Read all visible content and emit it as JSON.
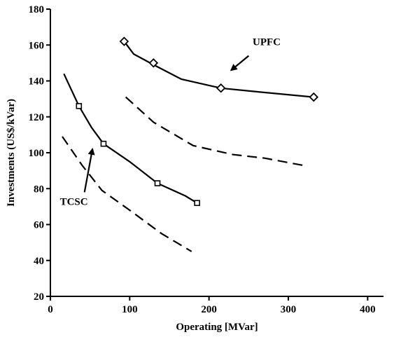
{
  "chart_data": {
    "type": "line",
    "title": "",
    "xlabel": "Operating [MVar]",
    "ylabel": "Investments (US$/kVar)",
    "xlim": [
      0,
      420
    ],
    "ylim": [
      20,
      180
    ],
    "xticks": [
      0,
      100,
      200,
      300,
      400
    ],
    "yticks": [
      20,
      40,
      60,
      80,
      100,
      120,
      140,
      160,
      180
    ],
    "grid": false,
    "series": [
      {
        "style": "solid-with-markers",
        "marker": "diamond",
        "color": "#000000",
        "curve": [
          [
            93,
            162
          ],
          [
            105,
            155
          ],
          [
            130,
            149
          ],
          [
            165,
            141
          ],
          [
            215,
            136
          ],
          [
            260,
            134
          ],
          [
            332,
            131
          ]
        ],
        "points": [
          [
            93,
            162
          ],
          [
            130,
            150
          ],
          [
            215,
            136
          ],
          [
            332,
            131
          ]
        ]
      },
      {
        "style": "dashed",
        "color": "#000000",
        "curve": [
          [
            95,
            131
          ],
          [
            130,
            117
          ],
          [
            180,
            104
          ],
          [
            230,
            99
          ],
          [
            270,
            97
          ],
          [
            318,
            93
          ]
        ],
        "points": []
      },
      {
        "style": "solid-with-markers",
        "marker": "square",
        "color": "#000000",
        "curve": [
          [
            17,
            144
          ],
          [
            36,
            126
          ],
          [
            52,
            114
          ],
          [
            67,
            105
          ],
          [
            100,
            95
          ],
          [
            135,
            83
          ],
          [
            170,
            76
          ],
          [
            185,
            72
          ]
        ],
        "points": [
          [
            36,
            126
          ],
          [
            67,
            105
          ],
          [
            135,
            83
          ],
          [
            185,
            72
          ]
        ]
      },
      {
        "style": "dashed",
        "color": "#000000",
        "curve": [
          [
            15,
            109
          ],
          [
            40,
            93
          ],
          [
            65,
            79
          ],
          [
            100,
            68
          ],
          [
            140,
            55
          ],
          [
            178,
            45
          ]
        ],
        "points": []
      }
    ],
    "annotations": [
      {
        "text": "UPFC",
        "text_at": [
          255,
          160
        ],
        "arrow_from": [
          250,
          154
        ],
        "arrow_to": [
          228,
          146
        ]
      },
      {
        "text": "TCSC",
        "text_at": [
          12,
          71
        ],
        "arrow_from": [
          43,
          78
        ],
        "arrow_to": [
          53,
          102
        ]
      }
    ]
  }
}
